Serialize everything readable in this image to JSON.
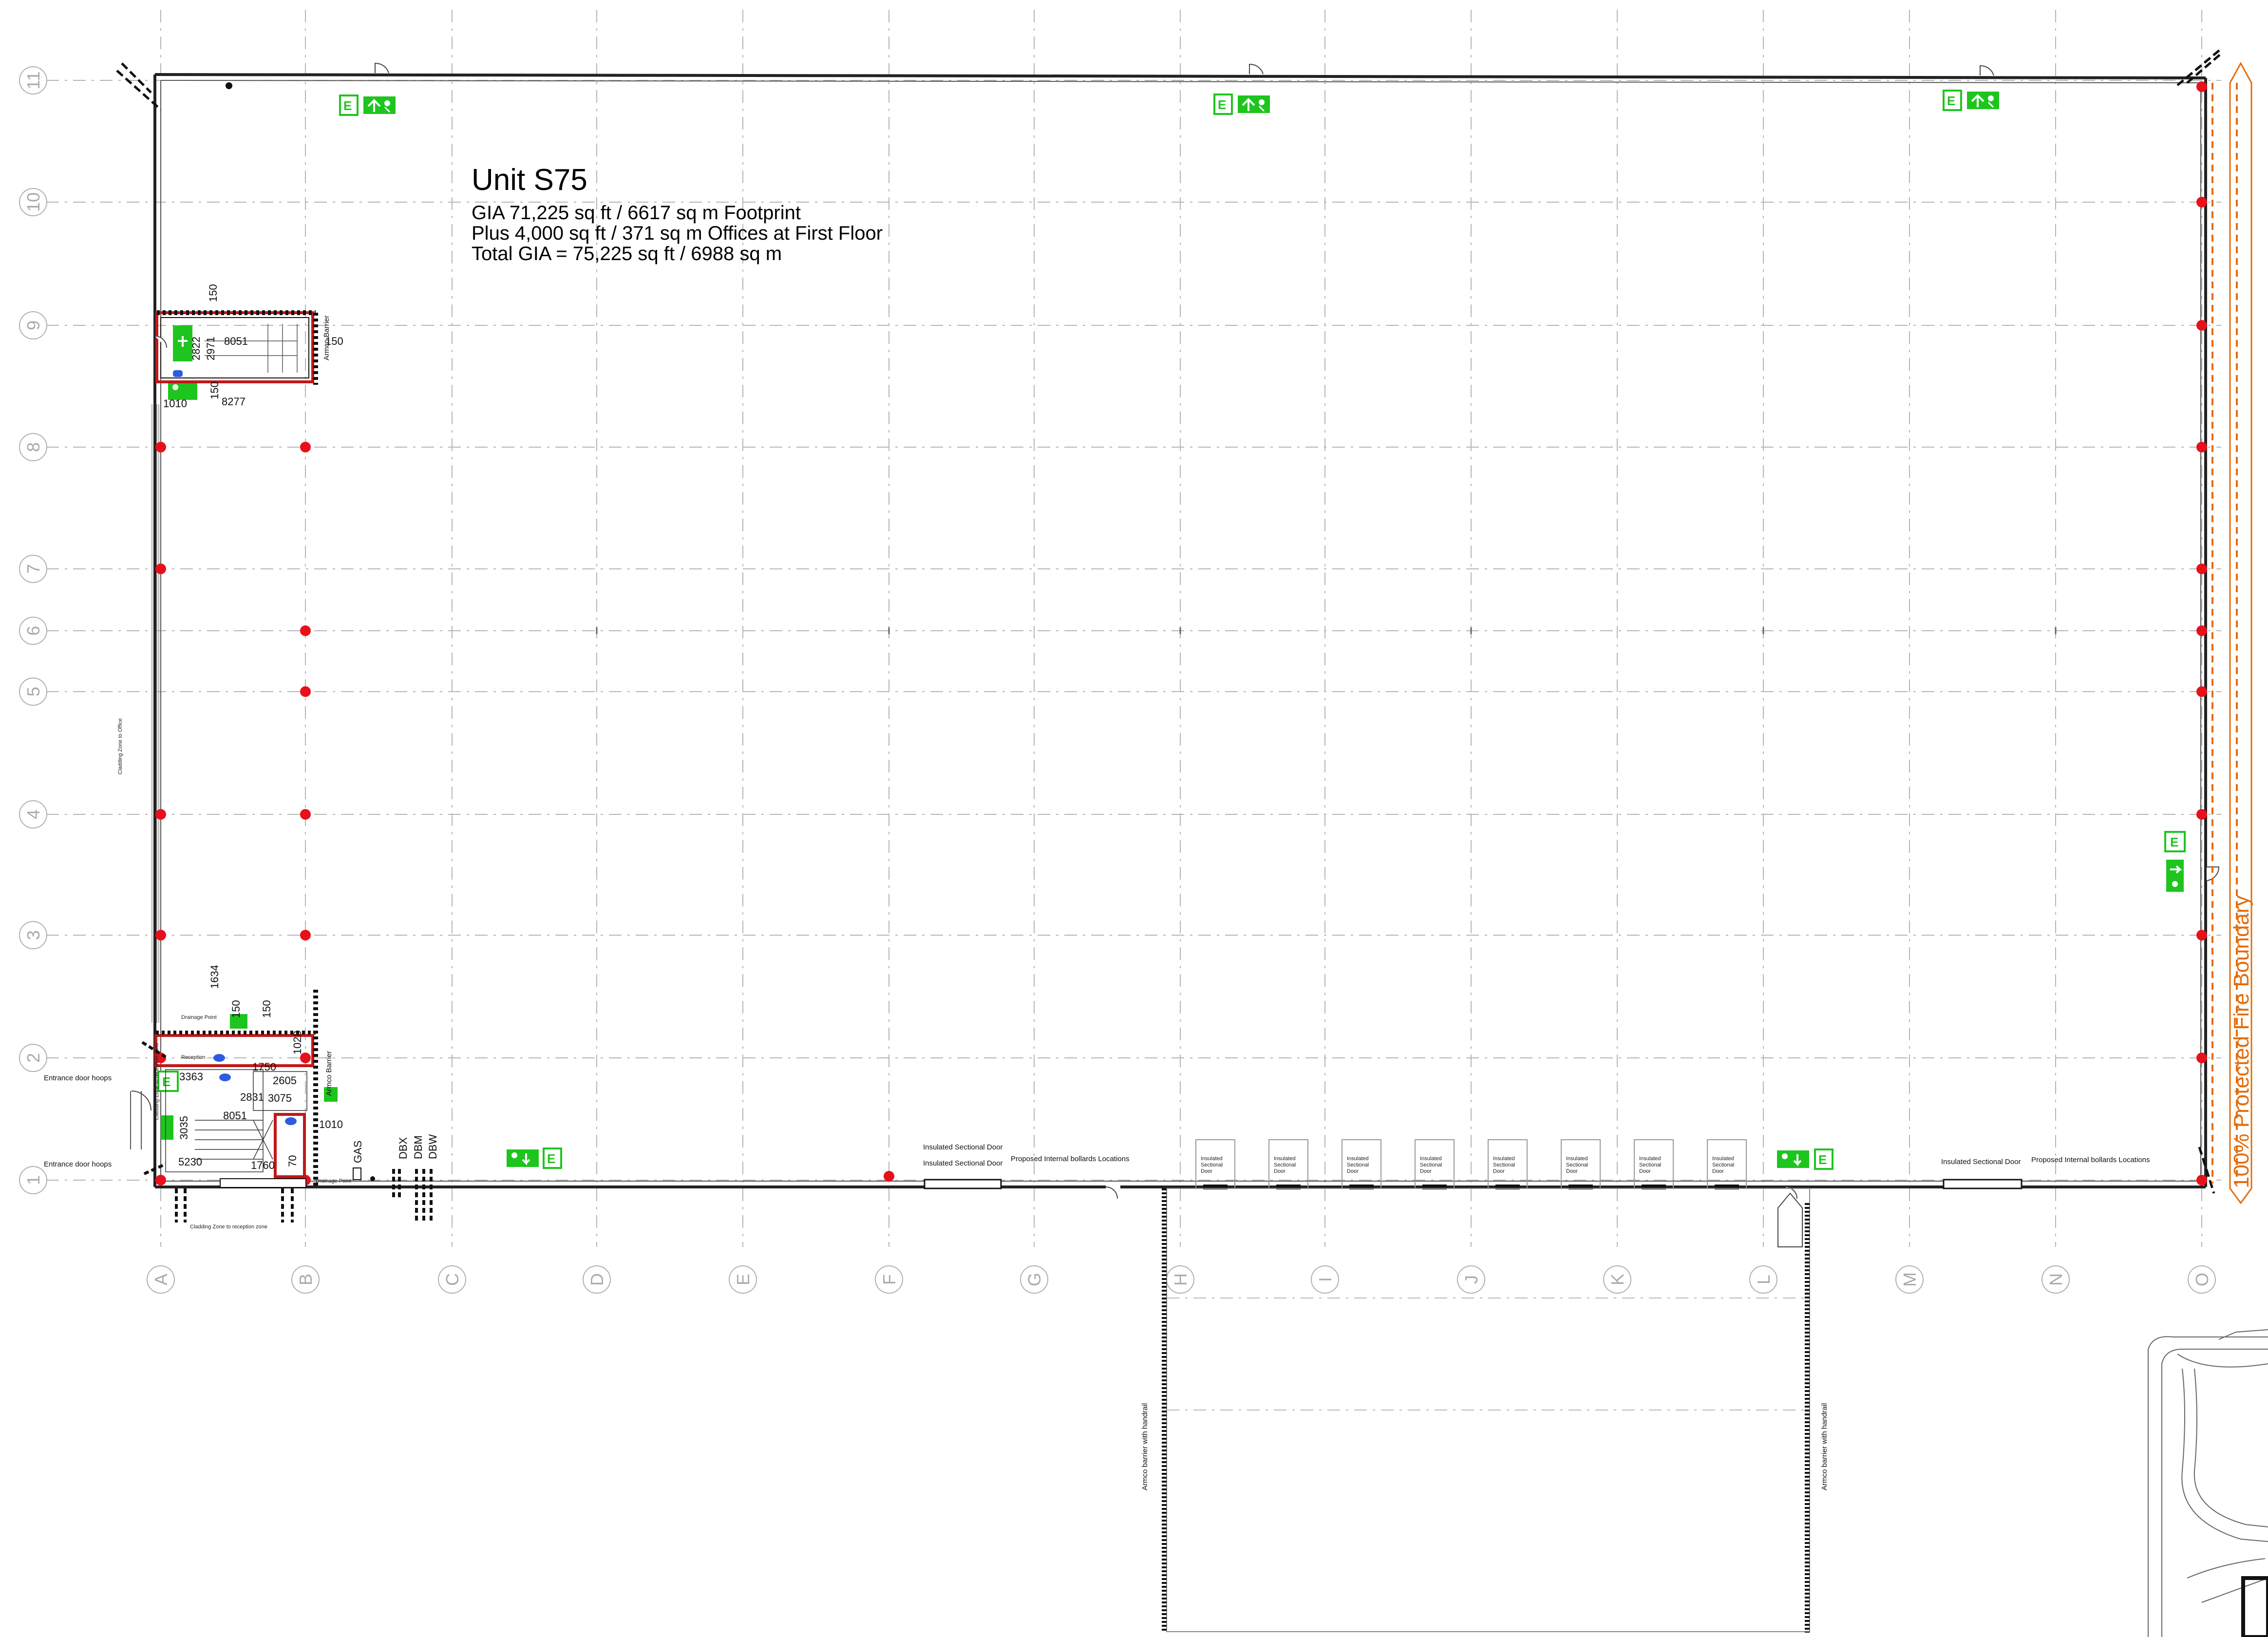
{
  "unit": {
    "title": "Unit S75",
    "gia_footprint": "GIA 71,225 sq ft / 6617 sq m Footprint",
    "offices": "Plus 4,000 sq ft / 371 sq m Offices at First Floor",
    "total_gia": "Total GIA = 75,225 sq ft / 6988 sq m"
  },
  "grid": {
    "columns": [
      "A",
      "B",
      "C",
      "D",
      "E",
      "F",
      "G",
      "H",
      "I",
      "J",
      "K",
      "L",
      "M",
      "N",
      "O"
    ],
    "rows": [
      "1",
      "2",
      "3",
      "4",
      "5",
      "6",
      "7",
      "8",
      "9",
      "10",
      "11"
    ]
  },
  "labels": {
    "fire_boundary": "100% Protected Fire Boundary",
    "insulated_sectional_door": "Insulated Sectional Door",
    "proposed_bollards": "Proposed Internal bollards Locations",
    "insulated_door_lines": [
      "Insulated",
      "Sectional",
      "Door"
    ],
    "armco_handrail": "Armco barrier with handrail",
    "armco_barrier": "Armco Barrier",
    "entrance_door_hoops": "Entrance door hoops",
    "cladding_zone_office": "Cladding Zone to Office",
    "cladding_zone_reception": "Cladding Zone to reception zone",
    "drainage_point": "Drainage Point",
    "reception": "Reception",
    "gas": "GAS",
    "dbx": "DBX",
    "dbm": "DBM",
    "dbw": "DBW"
  },
  "dimensions": {
    "stair_top": "150",
    "stair_width": "8051",
    "stair_side": "150",
    "stair_a": "2822",
    "stair_b": "2971",
    "stair_bottom": "150",
    "stair_c": "1010",
    "stair_d": "8277",
    "office_1634": "1634",
    "office_150a": "150",
    "office_150b": "150",
    "office_1028": "1028",
    "office_1750": "1750",
    "office_2605": "2605",
    "office_2831": "2831",
    "office_3075": "3075",
    "office_8051": "8051",
    "office_1010": "1010",
    "office_3363": "3363",
    "office_3035": "3035",
    "office_5230": "5230",
    "office_1760": "1760",
    "office_70": "70"
  },
  "signs": {
    "exit_letter": "E"
  },
  "colors": {
    "wall": "#222222",
    "grid": "#b5b5b5",
    "column": "#e8101a",
    "exit_sign": "#1ec51e",
    "fire_boundary": "#e46c0a",
    "core_outline": "#c21818"
  },
  "icons": {
    "exit": "exit-e-icon",
    "running_man": "running-man-icon",
    "door_swing": "door-swing-icon",
    "column": "structural-column-icon"
  }
}
